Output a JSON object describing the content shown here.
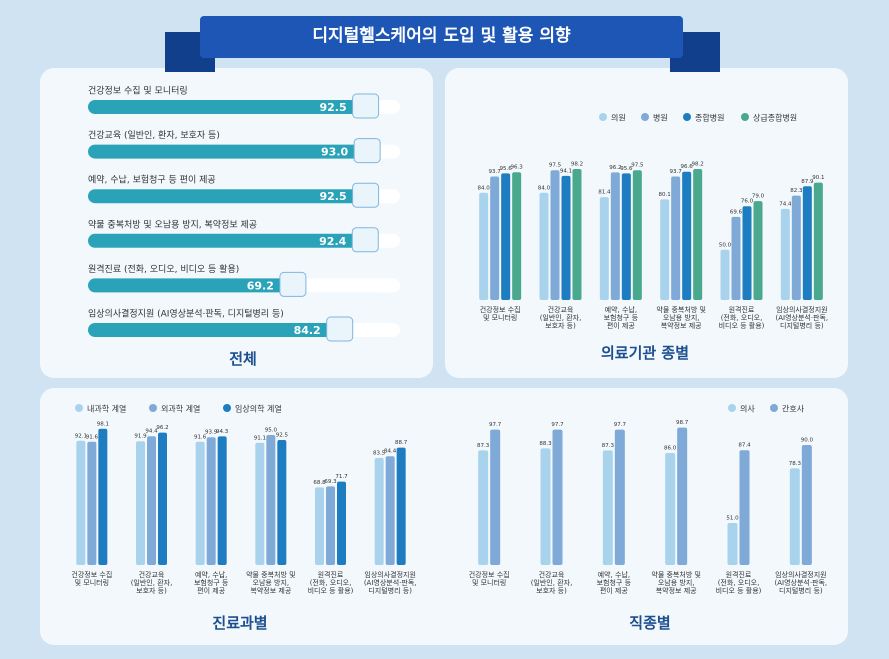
{
  "title": "디지털헬스케어의 도입 및 활용 의향",
  "chart_data": [
    {
      "type": "barh",
      "title": "전체",
      "categories": [
        "건강정보 수집 및 모니터링",
        "건강교육 (일반인, 환자, 보호자 등)",
        "예약, 수납, 보험청구 등 편이 제공",
        "약물 중복처방 및 오남용 방지, 복약정보 제공",
        "원격진료 (전화, 오디오, 비디오 등 활용)",
        "임상의사결정지원 (AI영상분석·판독, 디지털병리 등)"
      ],
      "values": [
        92.5,
        93.0,
        92.5,
        92.4,
        69.2,
        84.2
      ],
      "value_labels": [
        "92.5",
        "93.0",
        "92.5",
        "92.4",
        "69.2",
        "84.2"
      ],
      "color": "#2aa3b8",
      "xlim": [
        0,
        100
      ]
    },
    {
      "type": "bar",
      "title": "의료기관 종별",
      "legend": "upper right",
      "categories": [
        "건강정보 수집\n및 모니터링",
        "건강교육\n(일반인, 환자,\n보호자 등)",
        "예약, 수납,\n보험청구 등\n편이 제공",
        "약물 중복처방 및\n오남용 방지,\n복약정보 제공",
        "원격진료\n(전화, 오디오,\n비디오 등 활용)",
        "임상의사결정지원\n(AI영상분석·판독,\n디지털병리 등)"
      ],
      "series": [
        {
          "name": "의원",
          "color": "#a9d3ec",
          "values": [
            84.0,
            84.0,
            81.4,
            80.1,
            50.0,
            74.4
          ],
          "value_labels": [
            "84.0",
            "84.0",
            "81.4",
            "80.1",
            "50.0",
            "74.4"
          ]
        },
        {
          "name": "병원",
          "color": "#7fa9d6",
          "values": [
            93.7,
            97.5,
            96.2,
            93.7,
            69.6,
            82.3
          ],
          "value_labels": [
            "93.7",
            "97.5",
            "96.2",
            "93.7",
            "69.6",
            "82.3"
          ]
        },
        {
          "name": "종합병원",
          "color": "#1e7cc0",
          "values": [
            95.6,
            94.1,
            95.6,
            96.6,
            76.0,
            87.9
          ],
          "value_labels": [
            "95.6",
            "94.1",
            "95.6",
            "96.6",
            "76.0",
            "87.9"
          ]
        },
        {
          "name": "상급종합병원",
          "color": "#4aa88c",
          "values": [
            96.3,
            98.2,
            97.5,
            98.2,
            79.0,
            90.1
          ],
          "value_labels": [
            "96.3",
            "98.2",
            "97.5",
            "98.2",
            "79.0",
            "90.1"
          ]
        }
      ],
      "ylim": [
        20,
        100
      ]
    },
    {
      "type": "bar",
      "title": "진료과별",
      "legend": "upper left",
      "categories": [
        "건강정보 수집\n및 모니터링",
        "건강교육\n(일반인, 환자,\n보호자 등)",
        "예약, 수납,\n보험청구 등\n편이 제공",
        "약물 중복처방 및\n오남용 방지,\n복약정보 제공",
        "원격진료\n(전화, 오디오,\n비디오 등 활용)",
        "임상의사결정지원\n(AI영상분석·판독,\n디지털병리 등)"
      ],
      "series": [
        {
          "name": "내과학 계열",
          "color": "#a9d3ec",
          "values": [
            92.1,
            91.9,
            91.6,
            91.1,
            68.8,
            83.5
          ],
          "value_labels": [
            "92.1",
            "91.9",
            "91.6",
            "91.1",
            "68.8",
            "83.5"
          ]
        },
        {
          "name": "외과학 계열",
          "color": "#7fa9d6",
          "values": [
            91.6,
            94.4,
            93.9,
            95.0,
            69.3,
            84.4
          ],
          "value_labels": [
            "91.6",
            "94.4",
            "93.9",
            "95.0",
            "69.3",
            "84.4"
          ]
        },
        {
          "name": "임상의학 계열",
          "color": "#1e7cc0",
          "values": [
            98.1,
            96.2,
            94.3,
            92.5,
            71.7,
            88.7
          ],
          "value_labels": [
            "98.1",
            "96.2",
            "94.3",
            "92.5",
            "71.7",
            "88.7"
          ]
        }
      ],
      "ylim": [
        30,
        100
      ]
    },
    {
      "type": "bar",
      "title": "직종별",
      "legend": "upper right",
      "categories": [
        "건강정보 수집\n및 모니터링",
        "건강교육\n(일반인, 환자,\n보호자 등)",
        "예약, 수납,\n보험청구 등\n편이 제공",
        "약물 중복처방 및\n오남용 방지,\n복약정보 제공",
        "원격진료\n(전화, 오디오,\n비디오 등 활용)",
        "임상의사결정지원\n(AI영상분석·판독,\n디지털병리 등)"
      ],
      "series": [
        {
          "name": "의사",
          "color": "#a9d3ec",
          "values": [
            87.3,
            88.3,
            87.3,
            86.0,
            51.0,
            78.3
          ],
          "value_labels": [
            "87.3",
            "88.3",
            "87.3",
            "86.0",
            "51.0",
            "78.3"
          ]
        },
        {
          "name": "간호사",
          "color": "#7fa9d6",
          "values": [
            97.7,
            97.7,
            97.7,
            98.7,
            87.4,
            90.0
          ],
          "value_labels": [
            "97.7",
            "97.7",
            "97.7",
            "98.7",
            "87.4",
            "90.0"
          ]
        }
      ],
      "ylim": [
        30,
        100
      ]
    }
  ]
}
